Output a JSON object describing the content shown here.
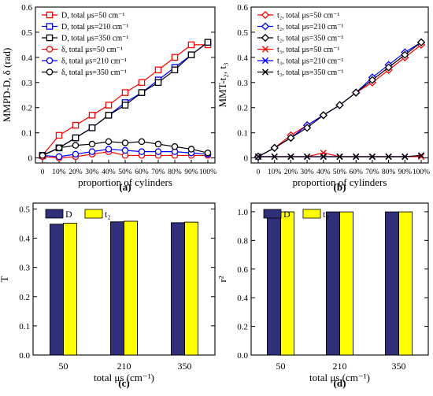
{
  "chart_data": [
    {
      "id": "a",
      "type": "line",
      "panel_label": "(a)",
      "xlabel": "proportion of cylinders",
      "ylabel": "MMPD-D, δ (rad)",
      "categories": [
        "0",
        "10%",
        "20%",
        "30%",
        "40%",
        "50%",
        "60%",
        "70%",
        "80%",
        "90%",
        "100%"
      ],
      "ylim": [
        -0.02,
        0.6
      ],
      "yticks": [
        "0",
        "0.1",
        "0.2",
        "0.3",
        "0.4",
        "0.5",
        "0.6"
      ],
      "series": [
        {
          "name": "D, total  μs=50 cm⁻¹",
          "color": "#ff0000",
          "marker": "square",
          "values": [
            0.01,
            0.09,
            0.13,
            0.17,
            0.21,
            0.26,
            0.3,
            0.35,
            0.4,
            0.45,
            0.45
          ]
        },
        {
          "name": "D, total  μs=210 cm⁻¹",
          "color": "#0000ff",
          "marker": "square",
          "values": [
            0.01,
            0.04,
            0.08,
            0.12,
            0.17,
            0.22,
            0.26,
            0.31,
            0.36,
            0.41,
            0.46
          ]
        },
        {
          "name": "D, total  μs=350 cm⁻¹",
          "color": "#000000",
          "marker": "square",
          "values": [
            0.01,
            0.04,
            0.08,
            0.12,
            0.17,
            0.21,
            0.26,
            0.3,
            0.35,
            0.41,
            0.46
          ]
        },
        {
          "name": "δ, total  μs=50 cm⁻¹",
          "color": "#ff0000",
          "marker": "circle",
          "values": [
            0.005,
            0.0,
            0.005,
            0.015,
            0.025,
            0.01,
            0.01,
            0.01,
            0.01,
            0.01,
            0.01
          ]
        },
        {
          "name": "δ, total  μs=210 cm⁻¹",
          "color": "#0000ff",
          "marker": "circle",
          "values": [
            0.01,
            0.005,
            0.015,
            0.025,
            0.035,
            0.03,
            0.025,
            0.025,
            0.025,
            0.02,
            0.015
          ]
        },
        {
          "name": "δ, total  μs=350 cm⁻¹",
          "color": "#000000",
          "marker": "circle",
          "values": [
            0.01,
            0.04,
            0.05,
            0.055,
            0.065,
            0.06,
            0.065,
            0.055,
            0.045,
            0.035,
            0.02
          ]
        }
      ]
    },
    {
      "id": "b",
      "type": "line",
      "panel_label": "(b)",
      "xlabel": "proportion of cylinders",
      "ylabel": "MMT-t₂, t₃",
      "categories": [
        "0",
        "10%",
        "20%",
        "30%",
        "40%",
        "50%",
        "60%",
        "70%",
        "80%",
        "90%",
        "100%"
      ],
      "ylim": [
        -0.02,
        0.6
      ],
      "yticks": [
        "0",
        "0.1",
        "0.2",
        "0.3",
        "0.4",
        "0.5",
        "0.6"
      ],
      "series": [
        {
          "name": "t₂, total  μs=50 cm⁻¹",
          "color": "#ff0000",
          "marker": "diamond",
          "values": [
            0.005,
            0.04,
            0.09,
            0.13,
            0.17,
            0.21,
            0.26,
            0.3,
            0.35,
            0.4,
            0.45
          ]
        },
        {
          "name": "t₂, total  μs=210 cm⁻¹",
          "color": "#0000ff",
          "marker": "diamond",
          "values": [
            0.005,
            0.04,
            0.08,
            0.13,
            0.17,
            0.21,
            0.26,
            0.32,
            0.37,
            0.42,
            0.46
          ]
        },
        {
          "name": "t₂, total  μs=350 cm⁻¹",
          "color": "#000000",
          "marker": "diamond",
          "values": [
            0.005,
            0.04,
            0.08,
            0.12,
            0.17,
            0.21,
            0.26,
            0.31,
            0.36,
            0.41,
            0.46
          ]
        },
        {
          "name": "t₃, total  μs=50 cm⁻¹",
          "color": "#ff0000",
          "marker": "x",
          "values": [
            0.005,
            0.005,
            0.005,
            0.005,
            0.02,
            0.005,
            0.005,
            0.005,
            0.005,
            0.005,
            0.005
          ]
        },
        {
          "name": "t₃, total  μs=210 cm⁻¹",
          "color": "#0000ff",
          "marker": "x",
          "values": [
            0.005,
            0.005,
            0.005,
            0.005,
            0.005,
            0.005,
            0.005,
            0.005,
            0.005,
            0.005,
            0.01
          ]
        },
        {
          "name": "t₃, total  μs=350 cm⁻¹",
          "color": "#000000",
          "marker": "x",
          "values": [
            0.005,
            0.005,
            0.005,
            0.005,
            0.005,
            0.005,
            0.005,
            0.005,
            0.005,
            0.005,
            0.01
          ]
        }
      ]
    },
    {
      "id": "c",
      "type": "bar",
      "panel_label": "(c)",
      "xlabel": "total  μs (cm⁻¹)",
      "ylabel": "T",
      "categories": [
        "50",
        "210",
        "350"
      ],
      "ylim": [
        0,
        0.52
      ],
      "yticks": [
        "0.0",
        "0.1",
        "0.2",
        "0.3",
        "0.4",
        "0.5"
      ],
      "series": [
        {
          "name": "D",
          "color": "#30307a",
          "values": [
            0.448,
            0.456,
            0.453
          ]
        },
        {
          "name": "t₂",
          "color": "#ffff00",
          "values": [
            0.451,
            0.458,
            0.455
          ]
        }
      ]
    },
    {
      "id": "d",
      "type": "bar",
      "panel_label": "(d)",
      "xlabel": "total  μs (cm⁻¹)",
      "ylabel": "r²",
      "categories": [
        "50",
        "210",
        "350"
      ],
      "ylim": [
        0,
        1.06
      ],
      "yticks": [
        "0.0",
        "0.2",
        "0.4",
        "0.6",
        "0.8",
        "1.0"
      ],
      "series": [
        {
          "name": "D",
          "color": "#30307a",
          "values": [
            0.999,
            0.999,
            0.999
          ]
        },
        {
          "name": "t₂",
          "color": "#ffff00",
          "values": [
            0.999,
            0.999,
            0.999
          ]
        }
      ]
    }
  ]
}
